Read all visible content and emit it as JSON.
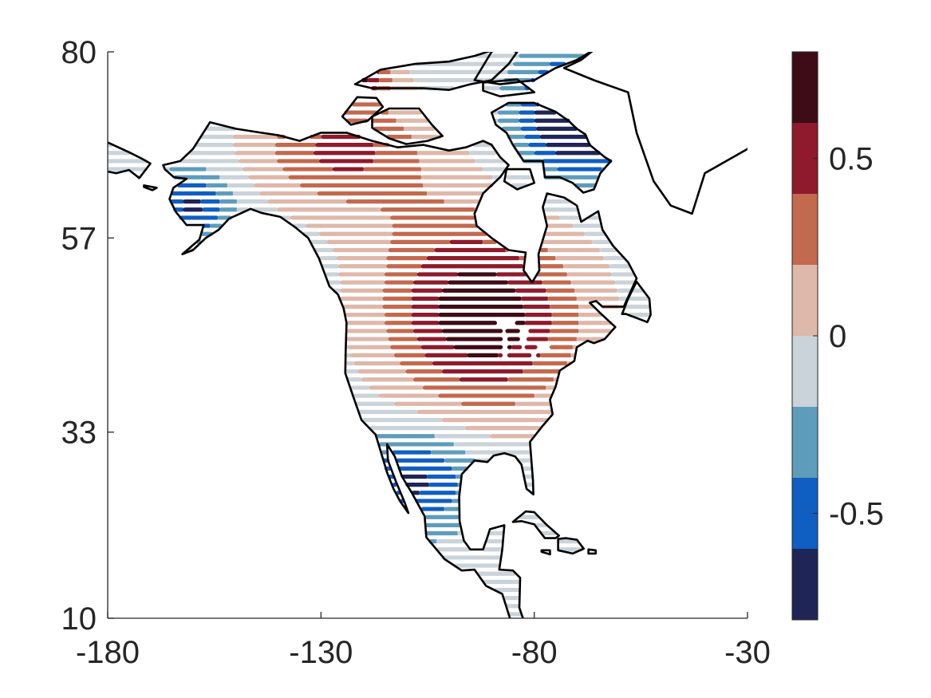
{
  "chart_data": {
    "type": "heatmap",
    "title": "",
    "xlabel": "",
    "ylabel": "",
    "xlim": [
      -180,
      -30
    ],
    "ylim": [
      10,
      80
    ],
    "x_ticks": [
      "-180",
      "-130",
      "-80",
      "-30"
    ],
    "y_ticks": [
      "80",
      "57",
      "33",
      "10"
    ],
    "grid": false,
    "colorbar": {
      "position": "right",
      "range": [
        -0.8,
        0.8
      ],
      "ticks": [
        "0.5",
        "0",
        "-0.5"
      ],
      "levels": [
        {
          "from": 0.6,
          "to": 0.8,
          "color": "#3d0c16"
        },
        {
          "from": 0.4,
          "to": 0.6,
          "color": "#8e1a2c"
        },
        {
          "from": 0.2,
          "to": 0.4,
          "color": "#c3694e"
        },
        {
          "from": 0.0,
          "to": 0.2,
          "color": "#deb8aa"
        },
        {
          "from": -0.2,
          "to": 0.0,
          "color": "#cad3d9"
        },
        {
          "from": -0.4,
          "to": -0.2,
          "color": "#5d9dbb"
        },
        {
          "from": -0.6,
          "to": -0.4,
          "color": "#0f5fc2"
        },
        {
          "from": -0.8,
          "to": -0.6,
          "color": "#1f2557"
        }
      ]
    },
    "field": {
      "region": "North America land",
      "centers": [
        {
          "lon": -92,
          "lat": 47,
          "value": 0.85,
          "spread_lon": 22,
          "spread_lat": 11
        },
        {
          "lon": -125,
          "lat": 68,
          "value": 0.55,
          "spread_lon": 20,
          "spread_lat": 7
        },
        {
          "lon": -70,
          "lat": 72,
          "value": -0.9,
          "spread_lon": 13,
          "spread_lat": 7
        },
        {
          "lon": -160,
          "lat": 61,
          "value": -0.55,
          "spread_lon": 9,
          "spread_lat": 4
        },
        {
          "lon": -108,
          "lat": 27,
          "value": -0.55,
          "spread_lon": 14,
          "spread_lat": 6
        },
        {
          "lon": -105,
          "lat": 58,
          "value": 0.15,
          "spread_lon": 20,
          "spread_lat": 8
        },
        {
          "lon": -122,
          "lat": 77,
          "value": 0.7,
          "spread_lon": 8,
          "spread_lat": 3
        }
      ]
    }
  }
}
